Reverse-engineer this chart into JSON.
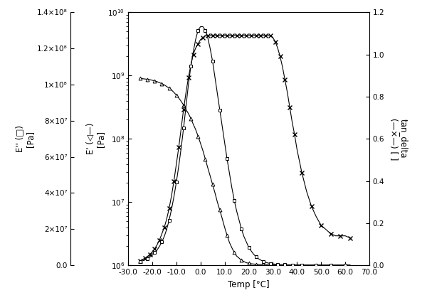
{
  "xlabel": "Temp [°C]",
  "ylabel_Edp": "E'' (□)\n[Pa]",
  "ylabel_Ep": "E' (◁—)\n[Pa]",
  "ylabel_td": "tan_delta\n(—×—) [ ]",
  "xlim": [
    -30,
    70
  ],
  "ylim_Edp": [
    0.0,
    140000000.0
  ],
  "ylim_Ep_log": [
    1000000.0,
    10000000000.0
  ],
  "ylim_td": [
    0.0,
    1.2
  ],
  "xticks": [
    -30,
    -20,
    -10,
    0,
    10,
    20,
    30,
    40,
    50,
    60,
    70
  ],
  "xtick_labels": [
    "-30.0",
    "-20.0",
    "-10.0",
    "0.0",
    "10.0",
    "20.0",
    "30.0",
    "40.0",
    "50.0",
    "60.0",
    "70.0"
  ],
  "Edp_yticks": [
    0.0,
    20000000.0,
    40000000.0,
    60000000.0,
    80000000.0,
    100000000.0,
    120000000.0,
    140000000.0
  ],
  "Edp_ytick_labels": [
    "0.0",
    "2×10⁷",
    "4×10⁷",
    "6×10⁷",
    "8×10⁷",
    "1×10⁸",
    "1.2×10⁸",
    "1.4×10⁸"
  ],
  "td_yticks": [
    0.0,
    0.2,
    0.4,
    0.6,
    0.8,
    1.0,
    1.2
  ],
  "td_ytick_labels": [
    "0.0",
    "0.2",
    "0.4",
    "0.6",
    "0.8",
    "1.0",
    "1.2"
  ],
  "E_prime_temps": [
    -25,
    -24,
    -23,
    -22,
    -21,
    -20,
    -19,
    -18,
    -17,
    -16,
    -15,
    -14,
    -13,
    -12,
    -11,
    -10,
    -9,
    -8,
    -7,
    -6,
    -5,
    -4,
    -3,
    -2,
    -1,
    0,
    1,
    2,
    3,
    4,
    5,
    6,
    7,
    8,
    9,
    10,
    11,
    12,
    13,
    14,
    15,
    16,
    17,
    18,
    19,
    20,
    21,
    22,
    23,
    24,
    25,
    26,
    27,
    28,
    29,
    30,
    31,
    32,
    33,
    34,
    35,
    36,
    37,
    38,
    39,
    40,
    42,
    44,
    46,
    48,
    50,
    52,
    54,
    56,
    58,
    60,
    62
  ],
  "E_prime_values": [
    900000000.0,
    890000000.0,
    880000000.0,
    870000000.0,
    860000000.0,
    840000000.0,
    820000000.0,
    800000000.0,
    770000000.0,
    740000000.0,
    710000000.0,
    670000000.0,
    630000000.0,
    590000000.0,
    540000000.0,
    490000000.0,
    440000000.0,
    390000000.0,
    340000000.0,
    290000000.0,
    250000000.0,
    210000000.0,
    170000000.0,
    140000000.0,
    110000000.0,
    85000000.0,
    65000000.0,
    48000000.0,
    35000000.0,
    26000000.0,
    19000000.0,
    14000000.0,
    10000000.0,
    7500000.0,
    5500000.0,
    4000000.0,
    3000000.0,
    2300000.0,
    1900000.0,
    1600000.0,
    1400000.0,
    1300000.0,
    1200000.0,
    1150000.0,
    1100000.0,
    1080000.0,
    1060000.0,
    1050000.0,
    1040000.0,
    1030000.0,
    1030000.0,
    1020000.0,
    1020000.0,
    1020000.0,
    1010000.0,
    1010000.0,
    1010000.0,
    1010000.0,
    1000000.0,
    1000000.0,
    1000000.0,
    1000000.0,
    1000000.0,
    1000000.0,
    1000000.0,
    1000000.0,
    1000000.0,
    1000000.0,
    1000000.0,
    1000000.0,
    1000000.0,
    1000000.0,
    1000000.0,
    1000000.0,
    1000000.0,
    1000000.0,
    1000000.0
  ],
  "E_double_prime_temps": [
    -25,
    -24,
    -23,
    -22,
    -21,
    -20,
    -19,
    -18,
    -17,
    -16,
    -15,
    -14,
    -13,
    -12,
    -11,
    -10,
    -9,
    -8,
    -7,
    -6,
    -5,
    -4,
    -3,
    -2,
    -1,
    0,
    1,
    2,
    3,
    4,
    5,
    6,
    7,
    8,
    9,
    10,
    11,
    12,
    13,
    14,
    15,
    16,
    17,
    18,
    19,
    20,
    21,
    22,
    23,
    24,
    25,
    26,
    27,
    28,
    29,
    30,
    31,
    32,
    33,
    34,
    35,
    36,
    37,
    38,
    39,
    40,
    42,
    44,
    46,
    48,
    50,
    52,
    54,
    56,
    58,
    60,
    62
  ],
  "E_double_prime_values": [
    2000000.0,
    2500000.0,
    3000000.0,
    3700000.0,
    4500000.0,
    5500000.0,
    7000000.0,
    8500000.0,
    10500000.0,
    13000000.0,
    16000000.0,
    20000000.0,
    25000000.0,
    31000000.0,
    38000000.0,
    46000000.0,
    55000000.0,
    65000000.0,
    76000000.0,
    88000000.0,
    100000000.0,
    110000000.0,
    118000000.0,
    125000000.0,
    130000000.0,
    132000000.0,
    132000000.0,
    130000000.0,
    126000000.0,
    120000000.0,
    113000000.0,
    104000000.0,
    95000000.0,
    86000000.0,
    77000000.0,
    68000000.0,
    59000000.0,
    51000000.0,
    43000000.0,
    36000000.0,
    30000000.0,
    25000000.0,
    20000000.0,
    16000000.0,
    13000000.0,
    10000000.0,
    8000000.0,
    6200000.0,
    4800000.0,
    3700000.0,
    2900000.0,
    2200000.0,
    1700000.0,
    1300000.0,
    1000000.0,
    800000.0,
    650000.0,
    530000.0,
    440000.0,
    380000.0,
    330000.0,
    300000.0,
    280000.0,
    260000.0,
    250000.0,
    240000.0,
    230000.0,
    220000.0,
    210000.0,
    200000.0,
    200000.0,
    200000.0,
    200000.0,
    200000.0,
    200000.0,
    200000.0,
    200000.0
  ],
  "tan_delta_temps": [
    -25,
    -24,
    -23,
    -22,
    -21,
    -20,
    -19,
    -18,
    -17,
    -16,
    -15,
    -14,
    -13,
    -12,
    -11,
    -10,
    -9,
    -8,
    -7,
    -6,
    -5,
    -4,
    -3,
    -2,
    -1,
    0,
    1,
    2,
    3,
    4,
    5,
    6,
    7,
    8,
    9,
    10,
    11,
    12,
    13,
    14,
    15,
    16,
    17,
    18,
    19,
    20,
    21,
    22,
    23,
    24,
    25,
    26,
    27,
    28,
    29,
    30,
    31,
    32,
    33,
    34,
    35,
    36,
    37,
    38,
    39,
    40,
    42,
    44,
    46,
    48,
    50,
    52,
    54,
    56,
    58,
    60,
    62
  ],
  "tan_delta_values": [
    0.022,
    0.028,
    0.034,
    0.042,
    0.052,
    0.064,
    0.079,
    0.097,
    0.12,
    0.15,
    0.18,
    0.22,
    0.27,
    0.33,
    0.4,
    0.48,
    0.56,
    0.65,
    0.74,
    0.82,
    0.89,
    0.95,
    1.0,
    1.03,
    1.05,
    1.07,
    1.08,
    1.09,
    1.09,
    1.09,
    1.09,
    1.09,
    1.09,
    1.09,
    1.09,
    1.09,
    1.09,
    1.09,
    1.09,
    1.09,
    1.09,
    1.09,
    1.09,
    1.09,
    1.09,
    1.09,
    1.09,
    1.09,
    1.09,
    1.09,
    1.09,
    1.09,
    1.09,
    1.09,
    1.09,
    1.08,
    1.06,
    1.03,
    0.99,
    0.94,
    0.88,
    0.82,
    0.75,
    0.68,
    0.62,
    0.55,
    0.44,
    0.35,
    0.28,
    0.23,
    0.19,
    0.17,
    0.15,
    0.14,
    0.14,
    0.14,
    0.13
  ],
  "tick_fontsize": 7.5,
  "label_fontsize": 8.5,
  "linewidth": 0.8,
  "markersize_sq": 3.5,
  "markersize_tri": 3.5,
  "markersize_x": 4.5,
  "marker_every_sq": 3,
  "marker_every_tri": 3,
  "marker_every_x": 2
}
